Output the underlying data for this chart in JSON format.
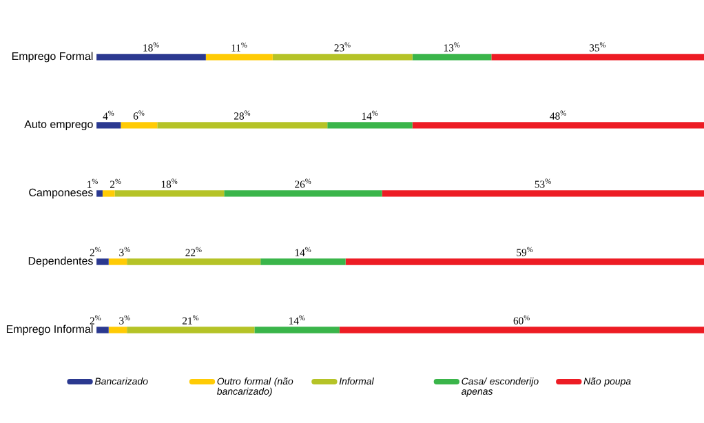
{
  "chart_data": {
    "type": "bar",
    "orientation": "horizontal",
    "stacked": true,
    "legend": "bottom",
    "categories": [
      "Emprego Formal",
      "Auto emprego",
      "Camponeses",
      "Dependentes",
      "Emprego Informal"
    ],
    "series": [
      {
        "name": "Bancarizado",
        "color": "#2b3990",
        "values": [
          18,
          4,
          1,
          2,
          2
        ],
        "value_labels": [
          "18$^{%}$",
          "4$^{%}$",
          "1$^{%}$",
          "2$^{%}$",
          "2$^{%}$"
        ]
      },
      {
        "name": "Outro formal (não bancarizado)",
        "color": "#ffcb05",
        "values": [
          11,
          6,
          2,
          3,
          3
        ],
        "value_labels": [
          "11$^{%}$",
          "6$^{%}$",
          "2$^{%}$",
          "3$^{%}$",
          "3$^{%}$"
        ]
      },
      {
        "name": "Informal",
        "color": "#b5c327",
        "values": [
          23,
          28,
          18,
          22,
          21
        ],
        "value_labels": [
          "23$^{%}$",
          "28$^{%}$",
          "18$^{%}$",
          "22$^{%}$",
          "21$^{%}$"
        ]
      },
      {
        "name": "Casa/ esconderijo apenas",
        "color": "#3ab54a",
        "values": [
          13,
          14,
          26,
          14,
          14
        ],
        "value_labels": [
          "13$^{%}$",
          "14$^{%}$",
          "26$^{%}$",
          "14$^{%}$",
          "14$^{%}$"
        ]
      },
      {
        "name": "Não poupa",
        "color": "#ed1c24",
        "values": [
          35,
          48,
          53,
          59,
          60
        ],
        "value_labels": [
          "35$^{%}$",
          "48$^{%}$",
          "53$^{%}$",
          "59$^{%}$",
          "60$^{%}$"
        ]
      }
    ]
  }
}
